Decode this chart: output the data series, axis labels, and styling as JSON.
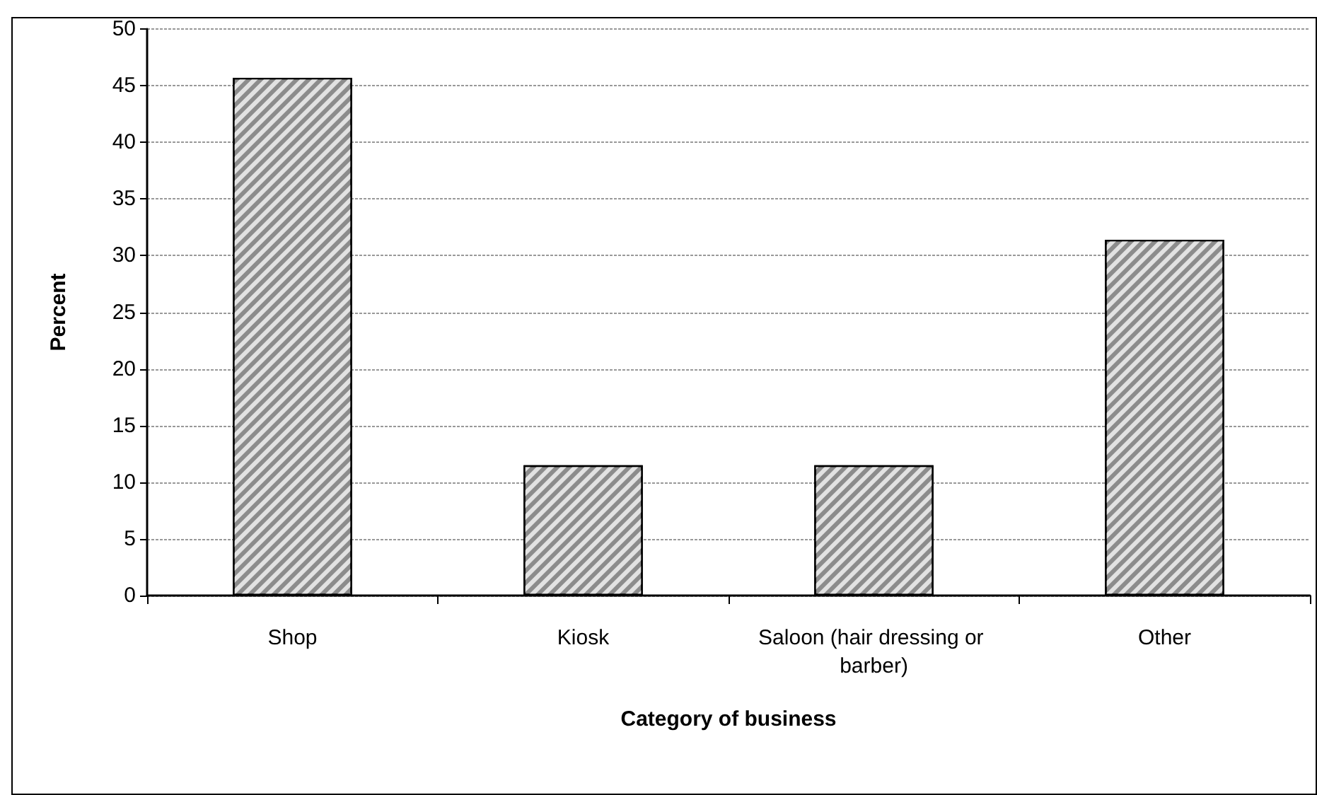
{
  "chart_data": {
    "type": "bar",
    "xlabel": "Category of business",
    "ylabel": "Percent",
    "categories": [
      "Shop",
      "Kiosk",
      "Saloon (hair dressing or barber)",
      "Other"
    ],
    "values": [
      45.7,
      11.5,
      11.5,
      31.4
    ],
    "color": "#8c8c8c",
    "ylim": [
      0,
      50
    ],
    "yticks": [
      0,
      5,
      10,
      15,
      20,
      25,
      30,
      35,
      40,
      45,
      50
    ],
    "grid": "y"
  }
}
